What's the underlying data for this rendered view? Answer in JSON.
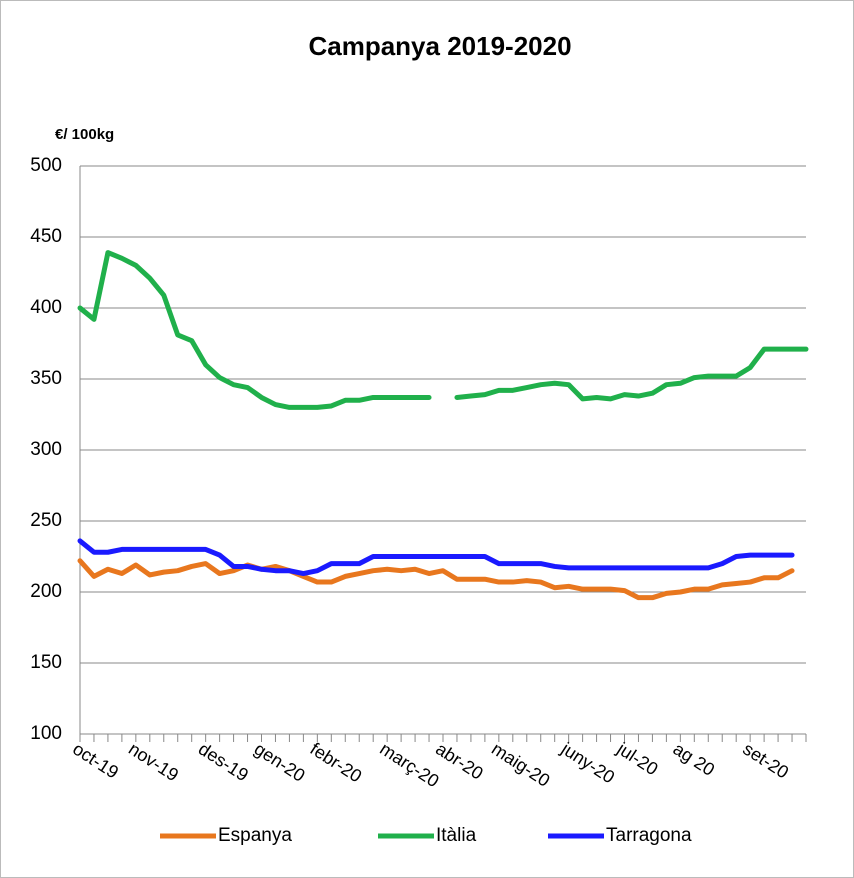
{
  "chart_data": {
    "type": "line",
    "title": "Campanya 2019-2020",
    "y_label": "€/ 100kg",
    "categories": [
      "oct-19",
      null,
      null,
      null,
      "nov-19",
      null,
      null,
      null,
      null,
      "des-19",
      null,
      null,
      null,
      "gen-20",
      null,
      null,
      null,
      "febr-20",
      null,
      null,
      null,
      null,
      "març-20",
      null,
      null,
      null,
      "abr-20",
      null,
      null,
      null,
      "maig-20",
      null,
      null,
      null,
      null,
      "juny-20",
      null,
      null,
      null,
      "jul-20",
      null,
      null,
      null,
      "ag 20",
      null,
      null,
      null,
      null,
      "set-20",
      null,
      null,
      null,
      null
    ],
    "series": [
      {
        "name": "Espanya",
        "color": "#e8771e",
        "values": [
          222,
          211,
          216,
          213,
          219,
          212,
          214,
          215,
          218,
          220,
          213,
          215,
          219,
          216,
          218,
          215,
          211,
          207,
          207,
          211,
          213,
          215,
          216,
          215,
          216,
          213,
          215,
          209,
          209,
          209,
          207,
          207,
          208,
          207,
          203,
          204,
          202,
          202,
          202,
          201,
          196,
          196,
          199,
          200,
          202,
          202,
          205,
          206,
          207,
          210,
          210,
          215,
          null
        ]
      },
      {
        "name": "Itàlia",
        "color": "#20b04b",
        "values": [
          400,
          392,
          439,
          435,
          430,
          421,
          409,
          381,
          377,
          360,
          351,
          346,
          344,
          337,
          332,
          330,
          330,
          330,
          331,
          335,
          335,
          337,
          337,
          337,
          337,
          337,
          null,
          337,
          338,
          339,
          342,
          342,
          344,
          346,
          347,
          346,
          336,
          337,
          336,
          339,
          338,
          340,
          346,
          347,
          351,
          352,
          352,
          352,
          358,
          371,
          371,
          371,
          371
        ]
      },
      {
        "name": "Tarragona",
        "color": "#1a1aff",
        "values": [
          236,
          228,
          228,
          230,
          230,
          230,
          230,
          230,
          230,
          230,
          226,
          218,
          218,
          216,
          215,
          215,
          213,
          215,
          220,
          220,
          220,
          225,
          225,
          225,
          225,
          225,
          225,
          225,
          225,
          225,
          220,
          220,
          220,
          220,
          218,
          217,
          217,
          217,
          217,
          217,
          217,
          217,
          217,
          217,
          217,
          217,
          220,
          225,
          226,
          226,
          226,
          226,
          null
        ]
      }
    ],
    "ylim": [
      100,
      500
    ],
    "yticks": [
      100,
      150,
      200,
      250,
      300,
      350,
      400,
      450,
      500
    ],
    "grid": true,
    "legend": "bottom"
  }
}
